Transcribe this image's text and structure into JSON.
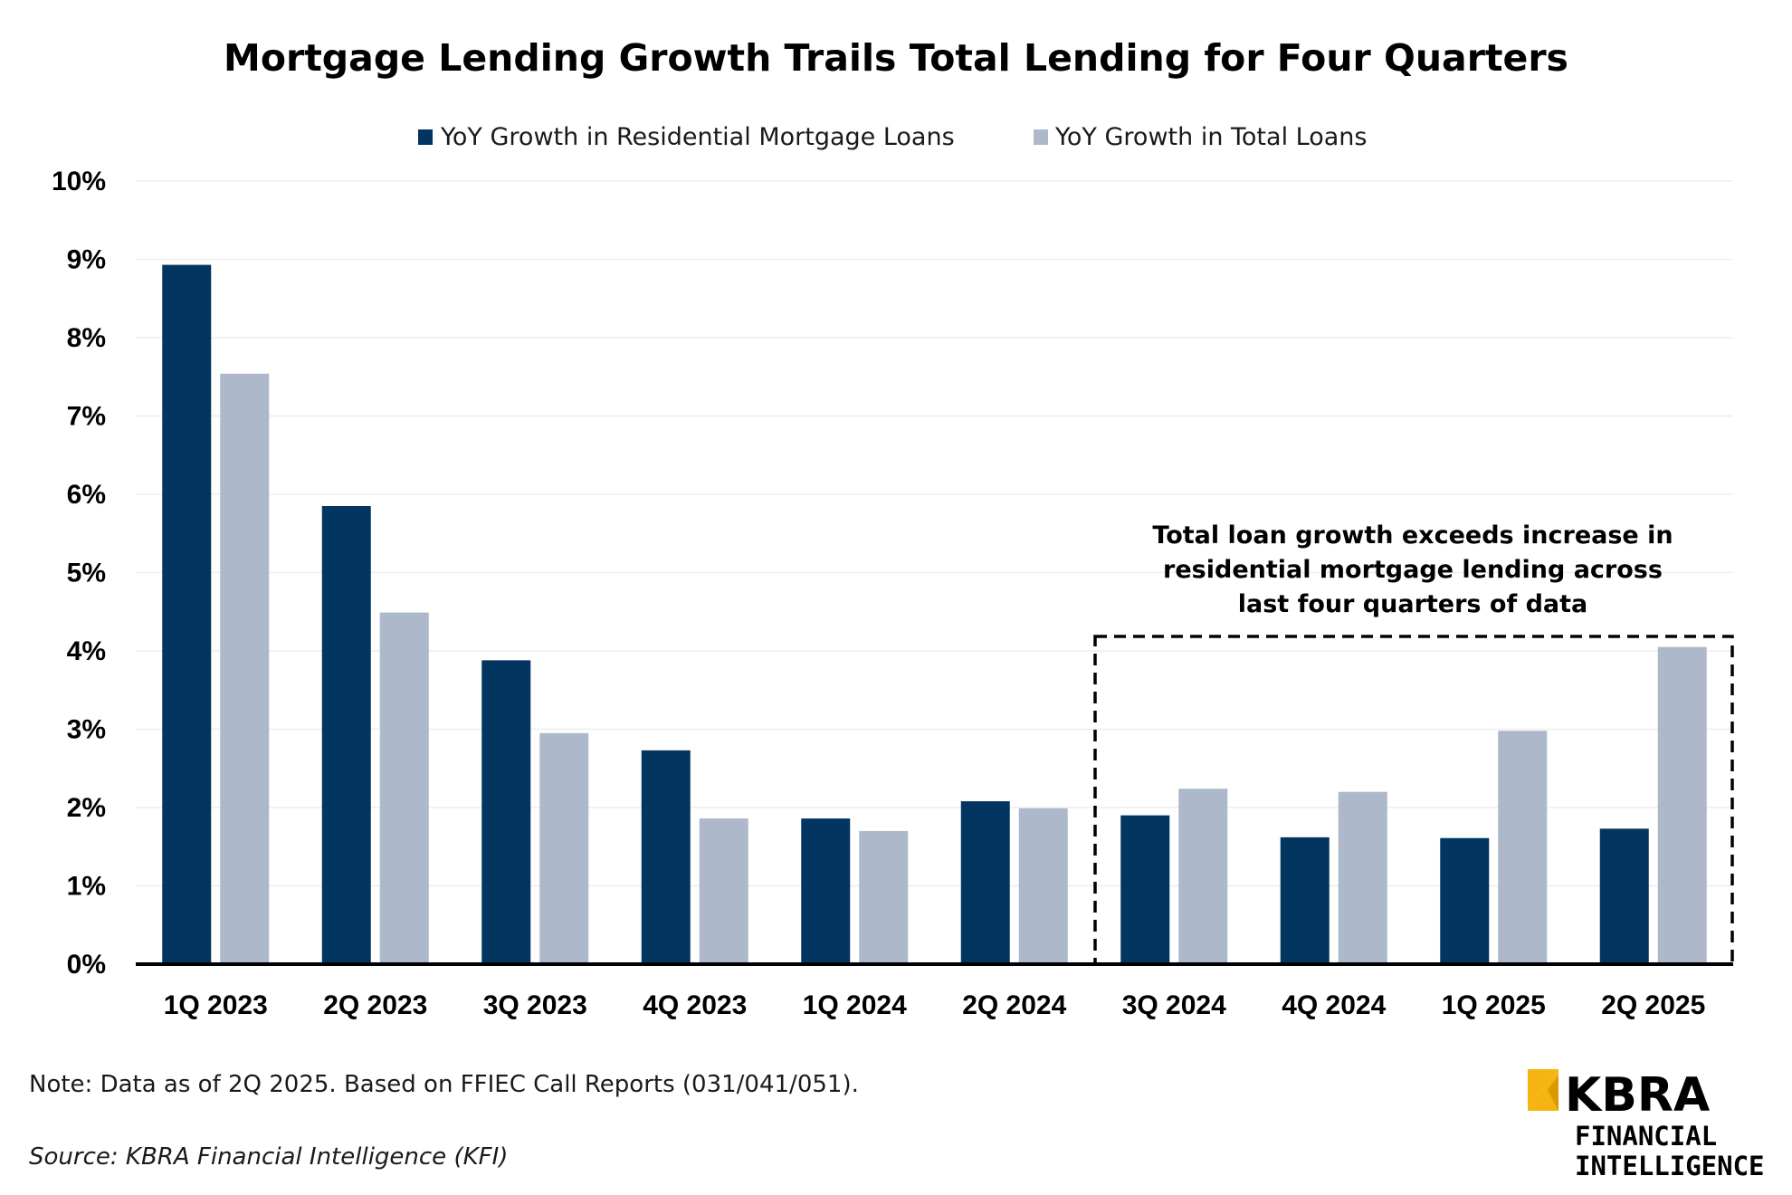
{
  "chart_data": {
    "type": "bar",
    "title": "Mortgage Lending Growth Trails Total Lending for Four Quarters",
    "xlabel": "",
    "ylabel": "",
    "ylim": [
      0,
      10
    ],
    "yticks": [
      "0%",
      "1%",
      "2%",
      "3%",
      "4%",
      "5%",
      "6%",
      "7%",
      "8%",
      "9%",
      "10%"
    ],
    "grid": true,
    "legend_position": "top-center",
    "categories": [
      "1Q 2023",
      "2Q 2023",
      "3Q 2023",
      "4Q 2023",
      "1Q 2024",
      "2Q 2024",
      "3Q 2024",
      "4Q 2024",
      "1Q 2025",
      "2Q 2025"
    ],
    "series": [
      {
        "name": "YoY Growth in Residential Mortgage Loans",
        "color": "#023560",
        "values": [
          8.93,
          5.85,
          3.88,
          2.73,
          1.86,
          2.08,
          1.9,
          1.62,
          1.61,
          1.73
        ]
      },
      {
        "name": "YoY Growth in Total Loans",
        "color": "#adb8ca",
        "values": [
          7.54,
          4.49,
          2.95,
          1.86,
          1.7,
          1.99,
          2.24,
          2.2,
          2.98,
          4.05
        ]
      }
    ],
    "annotation": {
      "lines": [
        "Total loan growth exceeds increase in",
        "residential mortgage lending across",
        "last four quarters of data"
      ],
      "highlight_categories": [
        "3Q 2024",
        "4Q 2024",
        "1Q 2025",
        "2Q 2025"
      ]
    }
  },
  "footer": {
    "note": "Note: Data as of 2Q 2025. Based on FFIEC Call Reports (031/041/051).",
    "source": "Source: KBRA Financial Intelligence (KFI)"
  },
  "logo": {
    "main": "KBRA",
    "line1": "FINANCIAL",
    "line2": "INTELLIGENCE",
    "accent_color": "#f5b412"
  }
}
